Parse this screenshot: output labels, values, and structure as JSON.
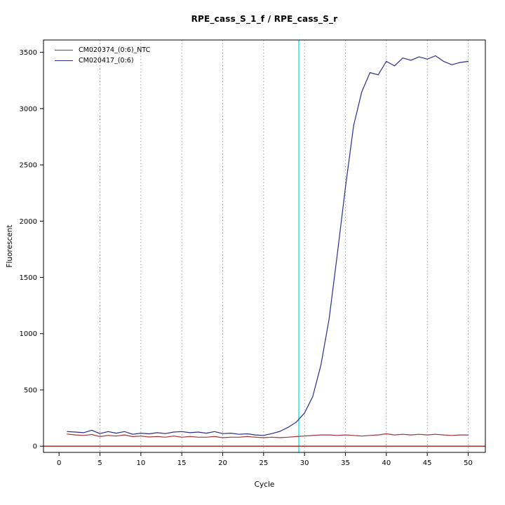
{
  "chart_data": {
    "type": "line",
    "title": "RPE_cass_S_1_f / RPE_cass_S_r",
    "xlabel": "Cycle",
    "ylabel": "Fluorescent",
    "xlim": [
      -1.9,
      52.1
    ],
    "ylim": [
      -55,
      3610
    ],
    "xticks": [
      0,
      5,
      10,
      15,
      20,
      25,
      30,
      35,
      40,
      45,
      50
    ],
    "yticks": [
      0,
      500,
      1000,
      1500,
      2000,
      2500,
      3000,
      3500
    ],
    "grid_x": [
      5,
      10,
      15,
      20,
      25,
      30,
      35,
      40,
      45,
      50
    ],
    "grid_color": "#8c8c8c",
    "axis_color": "#000000",
    "threshold_line": {
      "x": 29.3,
      "color": "#00e5e6"
    },
    "baseline": {
      "y": 0,
      "color": "#9b1c1c"
    },
    "legend_position": "top-left",
    "series": [
      {
        "name": "CM020374_(0:6)_NTC",
        "color": "#9e3438",
        "x": [
          1,
          2,
          3,
          4,
          5,
          6,
          7,
          8,
          9,
          10,
          11,
          12,
          13,
          14,
          15,
          16,
          17,
          18,
          19,
          20,
          21,
          22,
          23,
          24,
          25,
          26,
          27,
          28,
          29,
          30,
          31,
          32,
          33,
          34,
          35,
          36,
          37,
          38,
          39,
          40,
          41,
          42,
          43,
          44,
          45,
          46,
          47,
          48,
          49,
          50
        ],
        "values": [
          108,
          100,
          96,
          104,
          86,
          96,
          90,
          100,
          85,
          90,
          82,
          86,
          80,
          90,
          80,
          86,
          80,
          80,
          86,
          76,
          80,
          80,
          86,
          80,
          76,
          80,
          76,
          80,
          86,
          90,
          95,
          100,
          100,
          96,
          100,
          96,
          90,
          96,
          100,
          110,
          100,
          106,
          100,
          106,
          100,
          106,
          100,
          96,
          100,
          100
        ]
      },
      {
        "name": "CM020417_(0:6)",
        "color": "#2d2d88",
        "x": [
          1,
          2,
          3,
          4,
          5,
          6,
          7,
          8,
          9,
          10,
          11,
          12,
          13,
          14,
          15,
          16,
          17,
          18,
          19,
          20,
          21,
          22,
          23,
          24,
          25,
          26,
          27,
          28,
          29,
          30,
          31,
          32,
          33,
          34,
          35,
          36,
          37,
          38,
          39,
          40,
          41,
          42,
          43,
          44,
          45,
          46,
          47,
          48,
          49,
          50
        ],
        "values": [
          130,
          126,
          120,
          142,
          112,
          130,
          116,
          130,
          106,
          116,
          110,
          120,
          112,
          126,
          130,
          120,
          126,
          116,
          130,
          112,
          116,
          106,
          110,
          100,
          96,
          112,
          132,
          168,
          215,
          295,
          440,
          720,
          1130,
          1700,
          2300,
          2850,
          3150,
          3320,
          3300,
          3420,
          3380,
          3450,
          3430,
          3460,
          3440,
          3470,
          3420,
          3390,
          3410,
          3420
        ]
      }
    ]
  }
}
